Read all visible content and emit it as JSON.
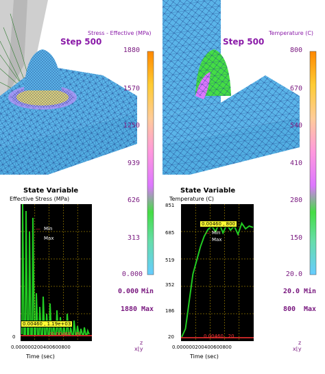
{
  "left": {
    "step_label": "Step 500",
    "contour_title": "Stress - Effective (MPa)",
    "ticks": [
      "1880",
      "1570",
      "1250",
      "939",
      "626",
      "313",
      "0.000"
    ],
    "min_value": "0.000",
    "min_label": "Min",
    "max_value": "1880",
    "max_label": "Max",
    "sv_heading": "State Variable",
    "sv_subtitle": "Effective Stress (MPa)",
    "y_tick": "0",
    "x_ticks": "0.000000200400600800",
    "x_label": "Time (sec)",
    "legend_min": "Min",
    "legend_max": "Max",
    "readout_top": "0.00460 , 1.19e+03",
    "readout_bottom": "(0.00460 , 0)"
  },
  "right": {
    "step_label": "Step 500",
    "contour_title": "Temperature (C)",
    "ticks": [
      "800",
      "670",
      "540",
      "410",
      "280",
      "150",
      "20.0"
    ],
    "min_value": "20.0",
    "min_label": "Min",
    "max_value": "800",
    "max_label": "Max",
    "sv_heading": "State Variable",
    "sv_subtitle": "Temperature (C)",
    "y_ticks": [
      "851",
      "685",
      "519",
      "352",
      "186",
      "20"
    ],
    "x_ticks": "0.000000200400600800",
    "x_label": "Time (sec)",
    "legend_min": "Min",
    "legend_max": "Max",
    "readout_top": "0.00460 , 800",
    "readout_bottom": "0.00460 , 20"
  },
  "axis_triad": {
    "z": "z",
    "x": "x",
    "y": "y"
  },
  "colors": {
    "mesh_blue": "#5ab4e8",
    "mesh_line": "#1f3f8a",
    "label_purple": "#8a1aa8",
    "plot_green": "#22cc22",
    "plot_bg": "#000000",
    "grid_gold": "#d8b000"
  }
}
